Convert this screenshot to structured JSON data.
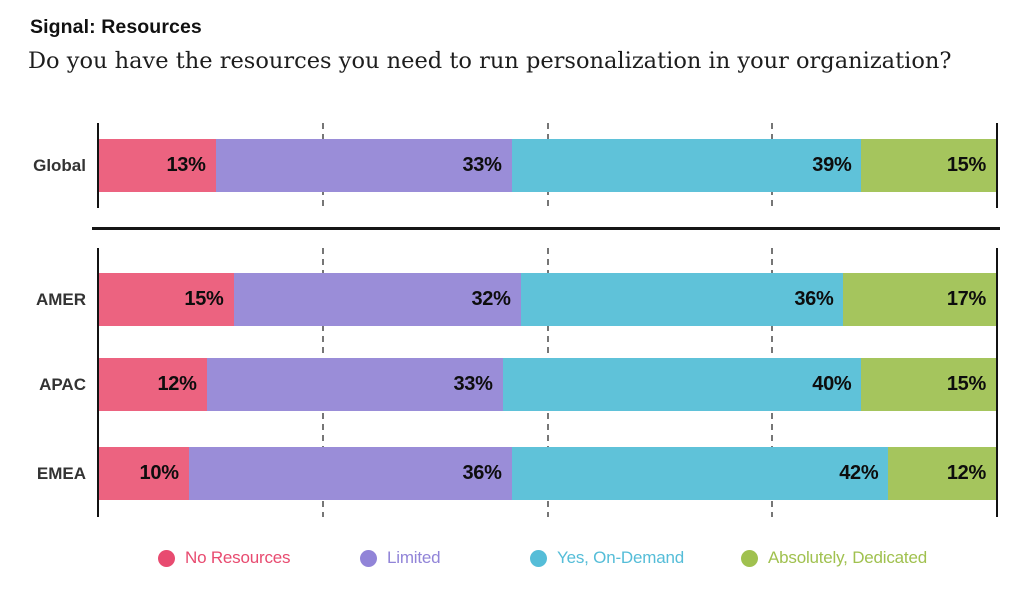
{
  "header": {
    "title": "Signal: Resources",
    "subtitle": "Do you have the resources you need to run personalization in your organization?"
  },
  "chart_data": {
    "type": "bar",
    "stacked": true,
    "orientation": "horizontal",
    "value_suffix": "%",
    "xlim": [
      0,
      100
    ],
    "gridlines_percent": [
      25,
      50,
      75
    ],
    "grid": "dashed-vertical",
    "legend_position": "bottom",
    "series": [
      "No Resources",
      "Limited",
      "Yes, On-Demand",
      "Absolutely, Dedicated"
    ],
    "series_colors": [
      "#EC6380",
      "#9A8DD8",
      "#5FC2D9",
      "#A5C55D"
    ],
    "groups": [
      {
        "name": "global",
        "rows": [
          {
            "label": "Global",
            "values": [
              13,
              33,
              39,
              15
            ]
          }
        ]
      },
      {
        "name": "regions",
        "rows": [
          {
            "label": "AMER",
            "values": [
              15,
              32,
              36,
              17
            ]
          },
          {
            "label": "APAC",
            "values": [
              12,
              33,
              40,
              15
            ]
          },
          {
            "label": "EMEA",
            "values": [
              10,
              36,
              42,
              12
            ]
          }
        ]
      }
    ]
  },
  "legend": {
    "items": [
      {
        "label": "No Resources",
        "color": "#E84B70"
      },
      {
        "label": "Limited",
        "color": "#9184D8"
      },
      {
        "label": "Yes, On-Demand",
        "color": "#55BDD8"
      },
      {
        "label": "Absolutely, Dedicated",
        "color": "#A0C14F"
      }
    ]
  }
}
